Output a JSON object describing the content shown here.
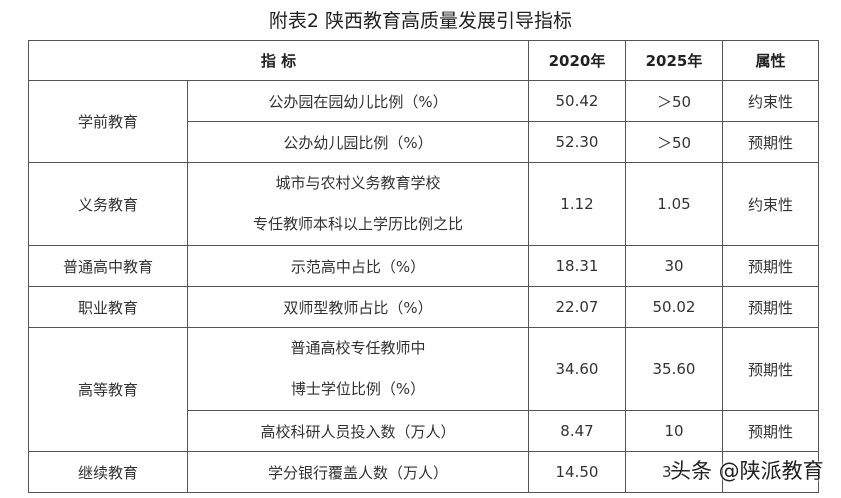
{
  "title": "附表2 陕西教育高质量发展引导指标",
  "headers": {
    "indicator": "指 标",
    "y2020": "2020年",
    "y2025": "2025年",
    "attr": "属性"
  },
  "rows": [
    {
      "category": "学前教育",
      "indicator": "公办园在园幼儿比例（%）",
      "y2020": "50.42",
      "y2025": "＞50",
      "attr": "约束性"
    },
    {
      "category": "",
      "indicator": "公办幼儿园比例（%）",
      "y2020": "52.30",
      "y2025": "＞50",
      "attr": "预期性"
    },
    {
      "category": "义务教育",
      "indicator_line1": "城市与农村义务教育学校",
      "indicator_line2": "专任教师本科以上学历比例之比",
      "y2020": "1.12",
      "y2025": "1.05",
      "attr": "约束性"
    },
    {
      "category": "普通高中教育",
      "indicator": "示范高中占比（%）",
      "y2020": "18.31",
      "y2025": "30",
      "attr": "预期性"
    },
    {
      "category": "职业教育",
      "indicator": "双师型教师占比（%）",
      "y2020": "22.07",
      "y2025": "50.02",
      "attr": "预期性"
    },
    {
      "category": "高等教育",
      "indicator_line1": "普通高校专任教师中",
      "indicator_line2": "博士学位比例（%）",
      "y2020": "34.60",
      "y2025": "35.60",
      "attr": "预期性"
    },
    {
      "category": "",
      "indicator": "高校科研人员投入数（万人）",
      "y2020": "8.47",
      "y2025": "10",
      "attr": "预期性"
    },
    {
      "category": "继续教育",
      "indicator": "学分银行覆盖人数（万人）",
      "y2020": "14.50",
      "y2025": "3",
      "attr": ""
    }
  ],
  "watermark": "头条 @陕派教育"
}
